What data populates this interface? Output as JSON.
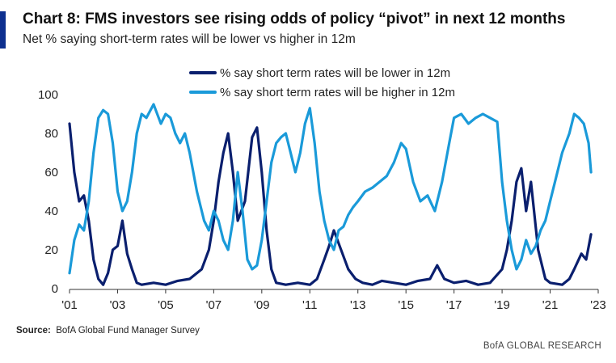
{
  "header": {
    "title": "Chart 8: FMS investors see rising odds of policy “pivot” in next 12 months",
    "subtitle": "Net % saying short-term rates will be lower vs higher in 12m"
  },
  "footer": {
    "source_label": "Source:",
    "source_text": "BofA Global Fund Manager Survey",
    "brand": "BofA GLOBAL RESEARCH"
  },
  "colors": {
    "lower": "#0a1f6e",
    "higher": "#1a9ad9"
  },
  "chart_data": {
    "type": "line",
    "x_tick_labels": [
      "'01",
      "'03",
      "'05",
      "'07",
      "'09",
      "'11",
      "'13",
      "'15",
      "'17",
      "'19",
      "'21",
      "'23"
    ],
    "x_ticks": [
      2001,
      2003,
      2005,
      2007,
      2009,
      2011,
      2013,
      2015,
      2017,
      2019,
      2021,
      2023
    ],
    "xlim": [
      2001,
      2023
    ],
    "ylim": [
      0,
      100
    ],
    "y_ticks": [
      0,
      20,
      40,
      60,
      80,
      100
    ],
    "grid": false,
    "legend_position": "top-center",
    "series": [
      {
        "name": "% say short term rates will be lower in 12m",
        "color": "#0a1f6e",
        "points": [
          [
            2001.0,
            85
          ],
          [
            2001.2,
            60
          ],
          [
            2001.4,
            45
          ],
          [
            2001.6,
            48
          ],
          [
            2001.8,
            35
          ],
          [
            2002.0,
            15
          ],
          [
            2002.2,
            5
          ],
          [
            2002.4,
            2
          ],
          [
            2002.6,
            8
          ],
          [
            2002.8,
            20
          ],
          [
            2003.0,
            22
          ],
          [
            2003.2,
            35
          ],
          [
            2003.4,
            18
          ],
          [
            2003.6,
            10
          ],
          [
            2003.8,
            3
          ],
          [
            2004.0,
            2
          ],
          [
            2004.5,
            3
          ],
          [
            2005.0,
            2
          ],
          [
            2005.5,
            4
          ],
          [
            2006.0,
            5
          ],
          [
            2006.5,
            10
          ],
          [
            2006.8,
            20
          ],
          [
            2007.0,
            35
          ],
          [
            2007.2,
            55
          ],
          [
            2007.4,
            70
          ],
          [
            2007.6,
            80
          ],
          [
            2007.8,
            60
          ],
          [
            2008.0,
            35
          ],
          [
            2008.3,
            45
          ],
          [
            2008.6,
            78
          ],
          [
            2008.8,
            83
          ],
          [
            2009.0,
            60
          ],
          [
            2009.2,
            30
          ],
          [
            2009.4,
            10
          ],
          [
            2009.6,
            3
          ],
          [
            2010.0,
            2
          ],
          [
            2010.5,
            3
          ],
          [
            2011.0,
            2
          ],
          [
            2011.3,
            5
          ],
          [
            2011.6,
            15
          ],
          [
            2011.8,
            22
          ],
          [
            2012.0,
            30
          ],
          [
            2012.3,
            20
          ],
          [
            2012.6,
            10
          ],
          [
            2012.9,
            5
          ],
          [
            2013.2,
            3
          ],
          [
            2013.6,
            2
          ],
          [
            2014.0,
            4
          ],
          [
            2014.5,
            3
          ],
          [
            2015.0,
            2
          ],
          [
            2015.5,
            4
          ],
          [
            2016.0,
            5
          ],
          [
            2016.3,
            12
          ],
          [
            2016.6,
            5
          ],
          [
            2017.0,
            3
          ],
          [
            2017.5,
            4
          ],
          [
            2018.0,
            2
          ],
          [
            2018.5,
            3
          ],
          [
            2019.0,
            10
          ],
          [
            2019.2,
            20
          ],
          [
            2019.4,
            35
          ],
          [
            2019.6,
            55
          ],
          [
            2019.8,
            62
          ],
          [
            2020.0,
            40
          ],
          [
            2020.2,
            55
          ],
          [
            2020.5,
            20
          ],
          [
            2020.8,
            5
          ],
          [
            2021.0,
            3
          ],
          [
            2021.5,
            2
          ],
          [
            2021.8,
            5
          ],
          [
            2022.0,
            10
          ],
          [
            2022.3,
            18
          ],
          [
            2022.5,
            15
          ],
          [
            2022.7,
            28
          ]
        ]
      },
      {
        "name": "% say short term rates will be higher in 12m",
        "color": "#1a9ad9",
        "points": [
          [
            2001.0,
            8
          ],
          [
            2001.2,
            25
          ],
          [
            2001.4,
            33
          ],
          [
            2001.6,
            30
          ],
          [
            2001.8,
            45
          ],
          [
            2002.0,
            70
          ],
          [
            2002.2,
            88
          ],
          [
            2002.4,
            92
          ],
          [
            2002.6,
            90
          ],
          [
            2002.8,
            75
          ],
          [
            2003.0,
            50
          ],
          [
            2003.2,
            40
          ],
          [
            2003.4,
            45
          ],
          [
            2003.6,
            60
          ],
          [
            2003.8,
            80
          ],
          [
            2004.0,
            90
          ],
          [
            2004.2,
            88
          ],
          [
            2004.5,
            95
          ],
          [
            2004.8,
            85
          ],
          [
            2005.0,
            90
          ],
          [
            2005.2,
            88
          ],
          [
            2005.4,
            80
          ],
          [
            2005.6,
            75
          ],
          [
            2005.8,
            80
          ],
          [
            2006.0,
            70
          ],
          [
            2006.3,
            50
          ],
          [
            2006.6,
            35
          ],
          [
            2006.8,
            30
          ],
          [
            2007.0,
            40
          ],
          [
            2007.2,
            35
          ],
          [
            2007.4,
            25
          ],
          [
            2007.6,
            20
          ],
          [
            2007.8,
            35
          ],
          [
            2008.0,
            60
          ],
          [
            2008.2,
            40
          ],
          [
            2008.4,
            15
          ],
          [
            2008.6,
            10
          ],
          [
            2008.8,
            12
          ],
          [
            2009.0,
            25
          ],
          [
            2009.2,
            45
          ],
          [
            2009.4,
            65
          ],
          [
            2009.6,
            75
          ],
          [
            2009.8,
            78
          ],
          [
            2010.0,
            80
          ],
          [
            2010.2,
            70
          ],
          [
            2010.4,
            60
          ],
          [
            2010.6,
            70
          ],
          [
            2010.8,
            85
          ],
          [
            2011.0,
            93
          ],
          [
            2011.2,
            75
          ],
          [
            2011.4,
            50
          ],
          [
            2011.6,
            35
          ],
          [
            2011.8,
            25
          ],
          [
            2012.0,
            20
          ],
          [
            2012.2,
            30
          ],
          [
            2012.4,
            32
          ],
          [
            2012.6,
            38
          ],
          [
            2012.8,
            42
          ],
          [
            2013.0,
            45
          ],
          [
            2013.3,
            50
          ],
          [
            2013.6,
            52
          ],
          [
            2013.9,
            55
          ],
          [
            2014.2,
            58
          ],
          [
            2014.5,
            65
          ],
          [
            2014.8,
            75
          ],
          [
            2015.0,
            72
          ],
          [
            2015.3,
            55
          ],
          [
            2015.6,
            45
          ],
          [
            2015.9,
            48
          ],
          [
            2016.2,
            40
          ],
          [
            2016.5,
            55
          ],
          [
            2016.8,
            75
          ],
          [
            2017.0,
            88
          ],
          [
            2017.3,
            90
          ],
          [
            2017.6,
            85
          ],
          [
            2017.9,
            88
          ],
          [
            2018.2,
            90
          ],
          [
            2018.5,
            88
          ],
          [
            2018.8,
            86
          ],
          [
            2019.0,
            55
          ],
          [
            2019.2,
            35
          ],
          [
            2019.4,
            20
          ],
          [
            2019.6,
            10
          ],
          [
            2019.8,
            15
          ],
          [
            2020.0,
            25
          ],
          [
            2020.2,
            18
          ],
          [
            2020.4,
            22
          ],
          [
            2020.6,
            30
          ],
          [
            2020.8,
            35
          ],
          [
            2021.0,
            45
          ],
          [
            2021.2,
            55
          ],
          [
            2021.5,
            70
          ],
          [
            2021.8,
            80
          ],
          [
            2022.0,
            90
          ],
          [
            2022.2,
            88
          ],
          [
            2022.4,
            85
          ],
          [
            2022.6,
            75
          ],
          [
            2022.7,
            60
          ]
        ]
      }
    ]
  }
}
